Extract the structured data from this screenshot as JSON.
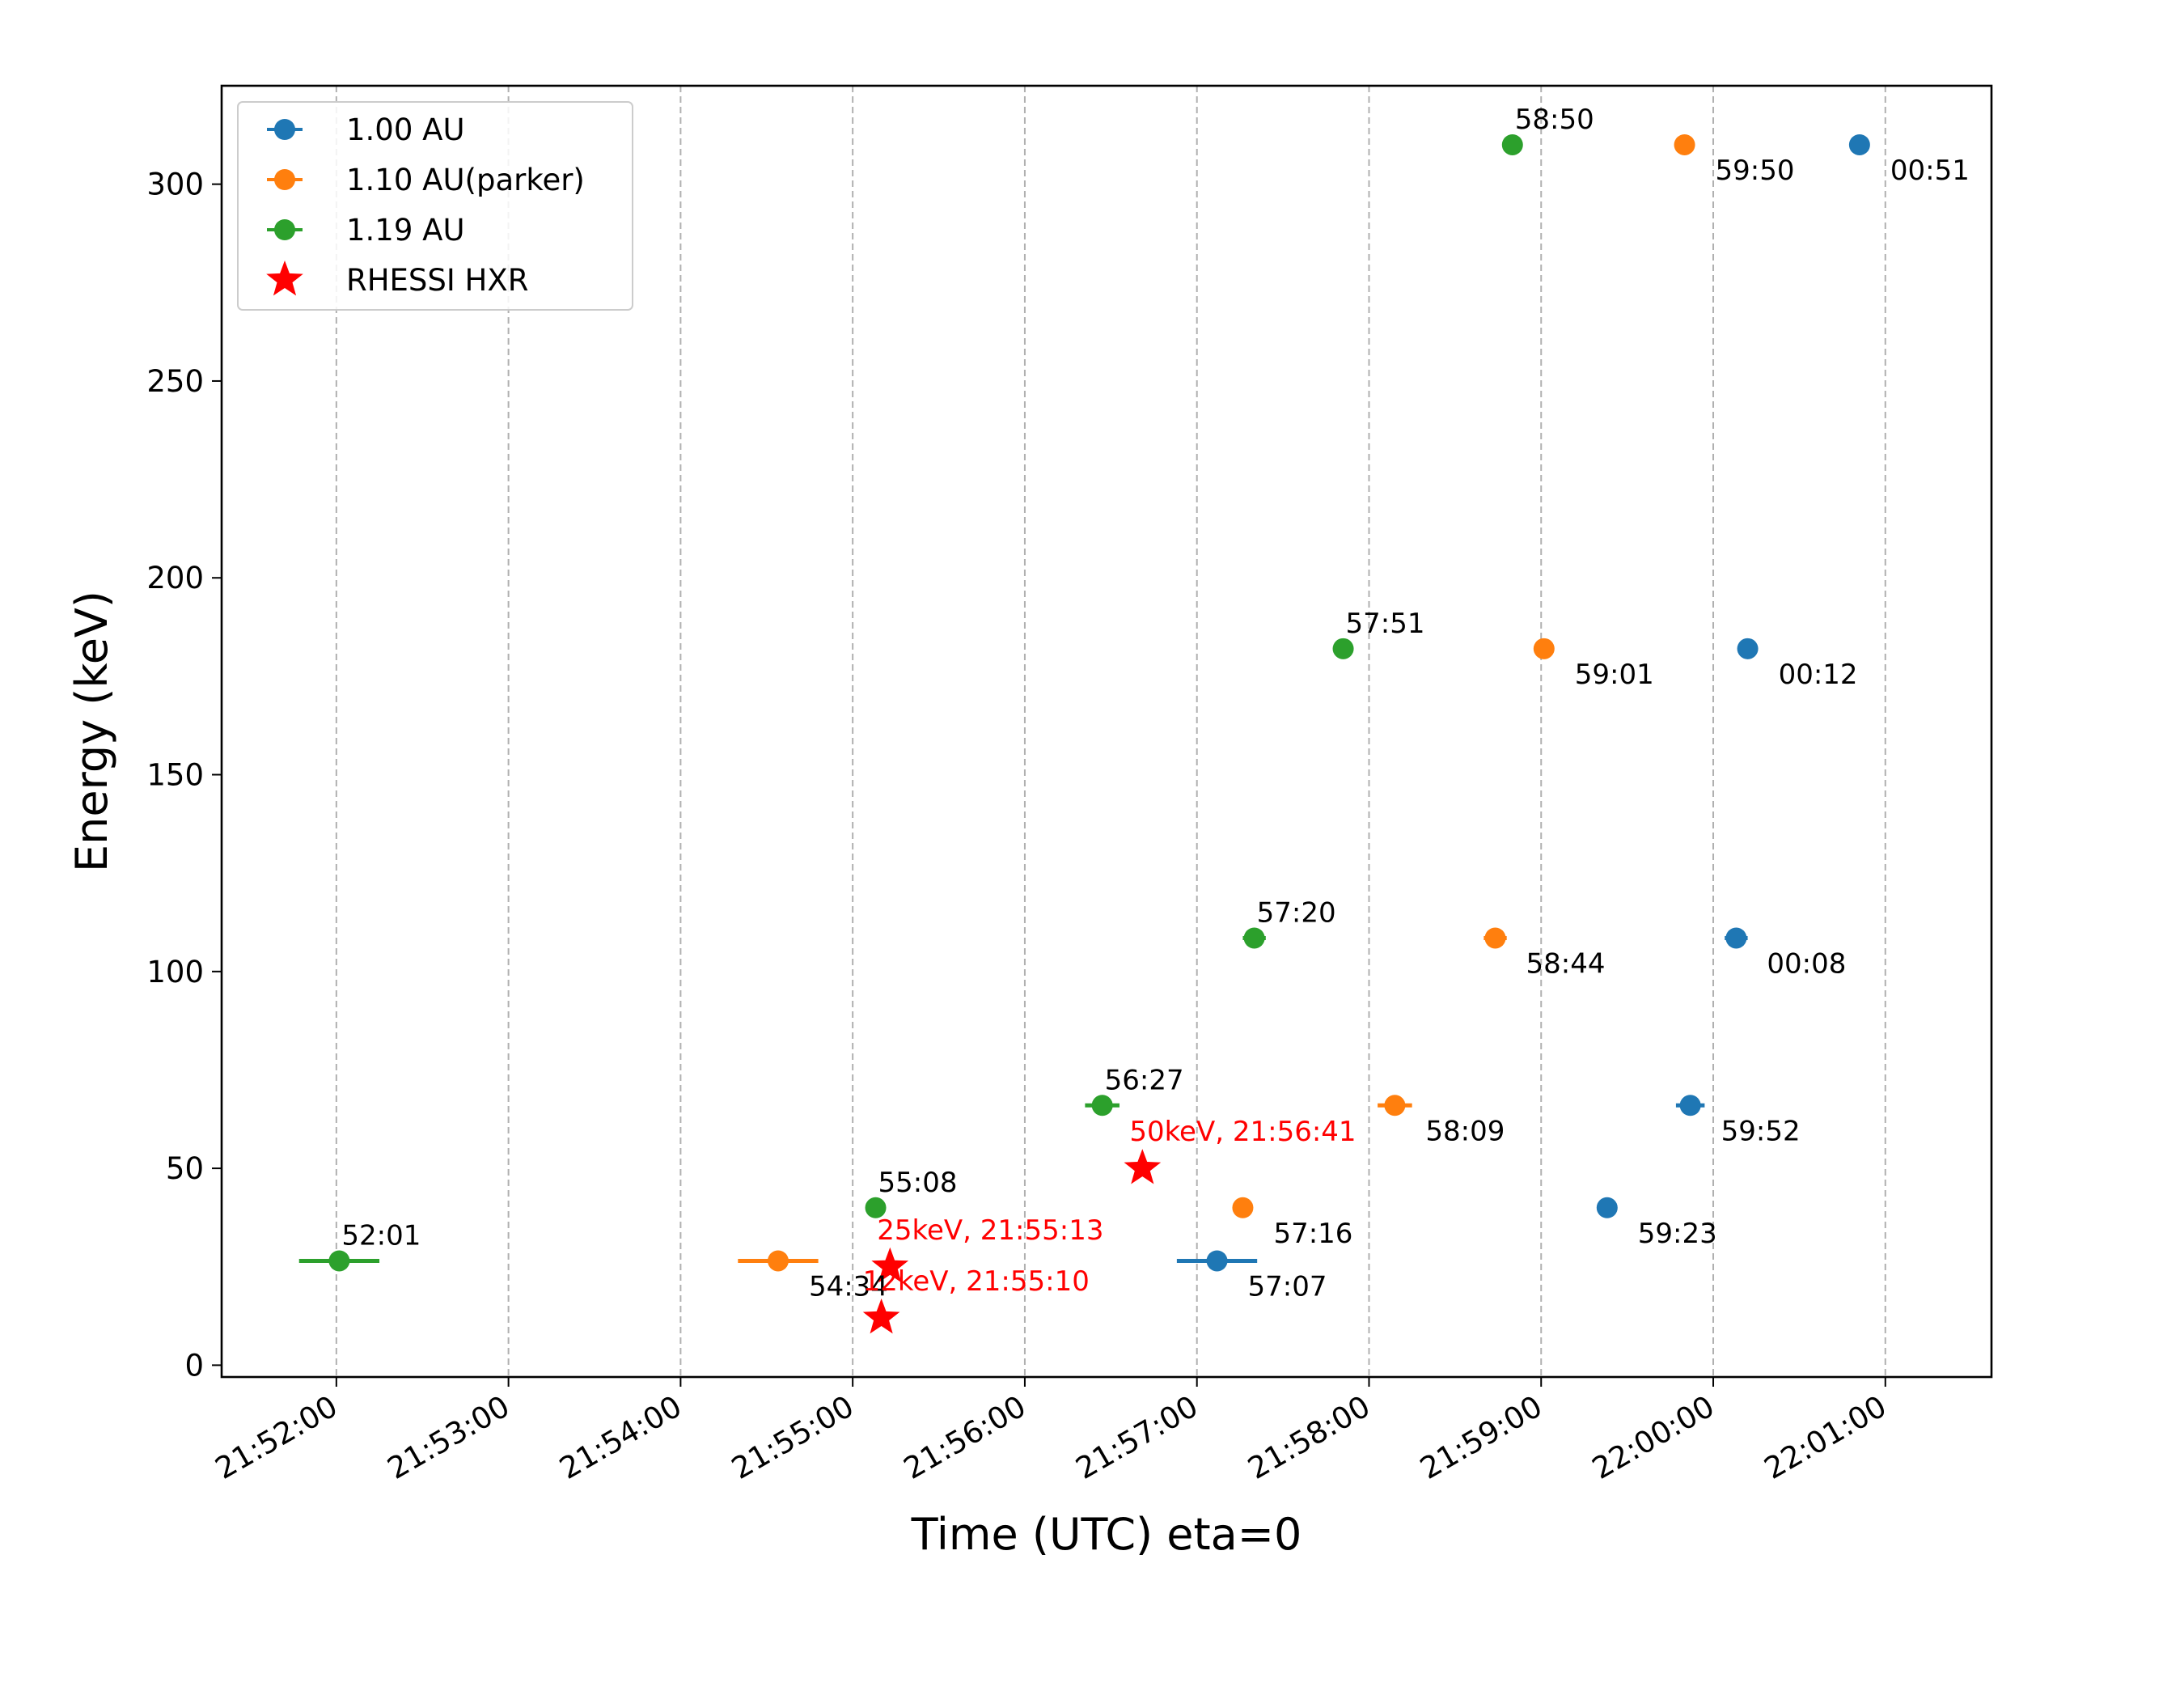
{
  "chart_data": {
    "type": "scatter",
    "xlabel": "Time (UTC) eta=0",
    "ylabel": "Energy (keV)",
    "x_ticks": [
      "21:52:00",
      "21:53:00",
      "21:54:00",
      "21:55:00",
      "21:56:00",
      "21:57:00",
      "21:58:00",
      "21:59:00",
      "22:00:00",
      "22:01:00"
    ],
    "y_ticks": [
      0,
      50,
      100,
      150,
      200,
      250,
      300
    ],
    "xlim": [
      "21:51:20",
      "22:01:37"
    ],
    "ylim": [
      -3,
      325
    ],
    "grid": "x-dashed",
    "legend_position": "top-left",
    "series": [
      {
        "name": "1.00 AU",
        "color": "#1f77b4",
        "points": [
          {
            "time": "21:57:07",
            "energy": 26.5,
            "xerr_s": 14,
            "label": "57:07"
          },
          {
            "time": "21:59:23",
            "energy": 40,
            "xerr_s": 0,
            "label": "59:23"
          },
          {
            "time": "21:59:52",
            "energy": 66,
            "xerr_s": 5,
            "label": "59:52"
          },
          {
            "time": "22:00:08",
            "energy": 108.5,
            "xerr_s": 4,
            "label": "00:08"
          },
          {
            "time": "22:00:12",
            "energy": 182,
            "xerr_s": 0,
            "label": "00:12"
          },
          {
            "time": "22:00:51",
            "energy": 310,
            "xerr_s": 0,
            "label": "00:51"
          }
        ]
      },
      {
        "name": "1.10 AU(parker)",
        "color": "#ff7f0e",
        "points": [
          {
            "time": "21:54:34",
            "energy": 26.5,
            "xerr_s": 14,
            "label": "54:34"
          },
          {
            "time": "21:57:16",
            "energy": 40,
            "xerr_s": 0,
            "label": "57:16"
          },
          {
            "time": "21:58:09",
            "energy": 66,
            "xerr_s": 6,
            "label": "58:09"
          },
          {
            "time": "21:58:44",
            "energy": 108.5,
            "xerr_s": 4,
            "label": "58:44"
          },
          {
            "time": "21:59:01",
            "energy": 182,
            "xerr_s": 0,
            "label": "59:01"
          },
          {
            "time": "21:59:50",
            "energy": 310,
            "xerr_s": 0,
            "label": "59:50"
          }
        ]
      },
      {
        "name": "1.19 AU",
        "color": "#2ca02c",
        "points": [
          {
            "time": "21:52:01",
            "energy": 26.5,
            "xerr_s": 14,
            "label": "52:01"
          },
          {
            "time": "21:55:08",
            "energy": 40,
            "xerr_s": 0,
            "label": "55:08"
          },
          {
            "time": "21:56:27",
            "energy": 66,
            "xerr_s": 6,
            "label": "56:27"
          },
          {
            "time": "21:57:20",
            "energy": 108.5,
            "xerr_s": 4,
            "label": "57:20"
          },
          {
            "time": "21:57:51",
            "energy": 182,
            "xerr_s": 0,
            "label": "57:51"
          },
          {
            "time": "21:58:50",
            "energy": 310,
            "xerr_s": 0,
            "label": "58:50"
          }
        ]
      },
      {
        "name": "RHESSI HXR",
        "color": "#ff0000",
        "marker": "star",
        "points": [
          {
            "time": "21:55:10",
            "energy": 12,
            "label": "12keV, 21:55:10"
          },
          {
            "time": "21:55:13",
            "energy": 25,
            "label": "25keV, 21:55:13"
          },
          {
            "time": "21:56:41",
            "energy": 50,
            "label": "50keV, 21:56:41"
          }
        ]
      }
    ]
  }
}
